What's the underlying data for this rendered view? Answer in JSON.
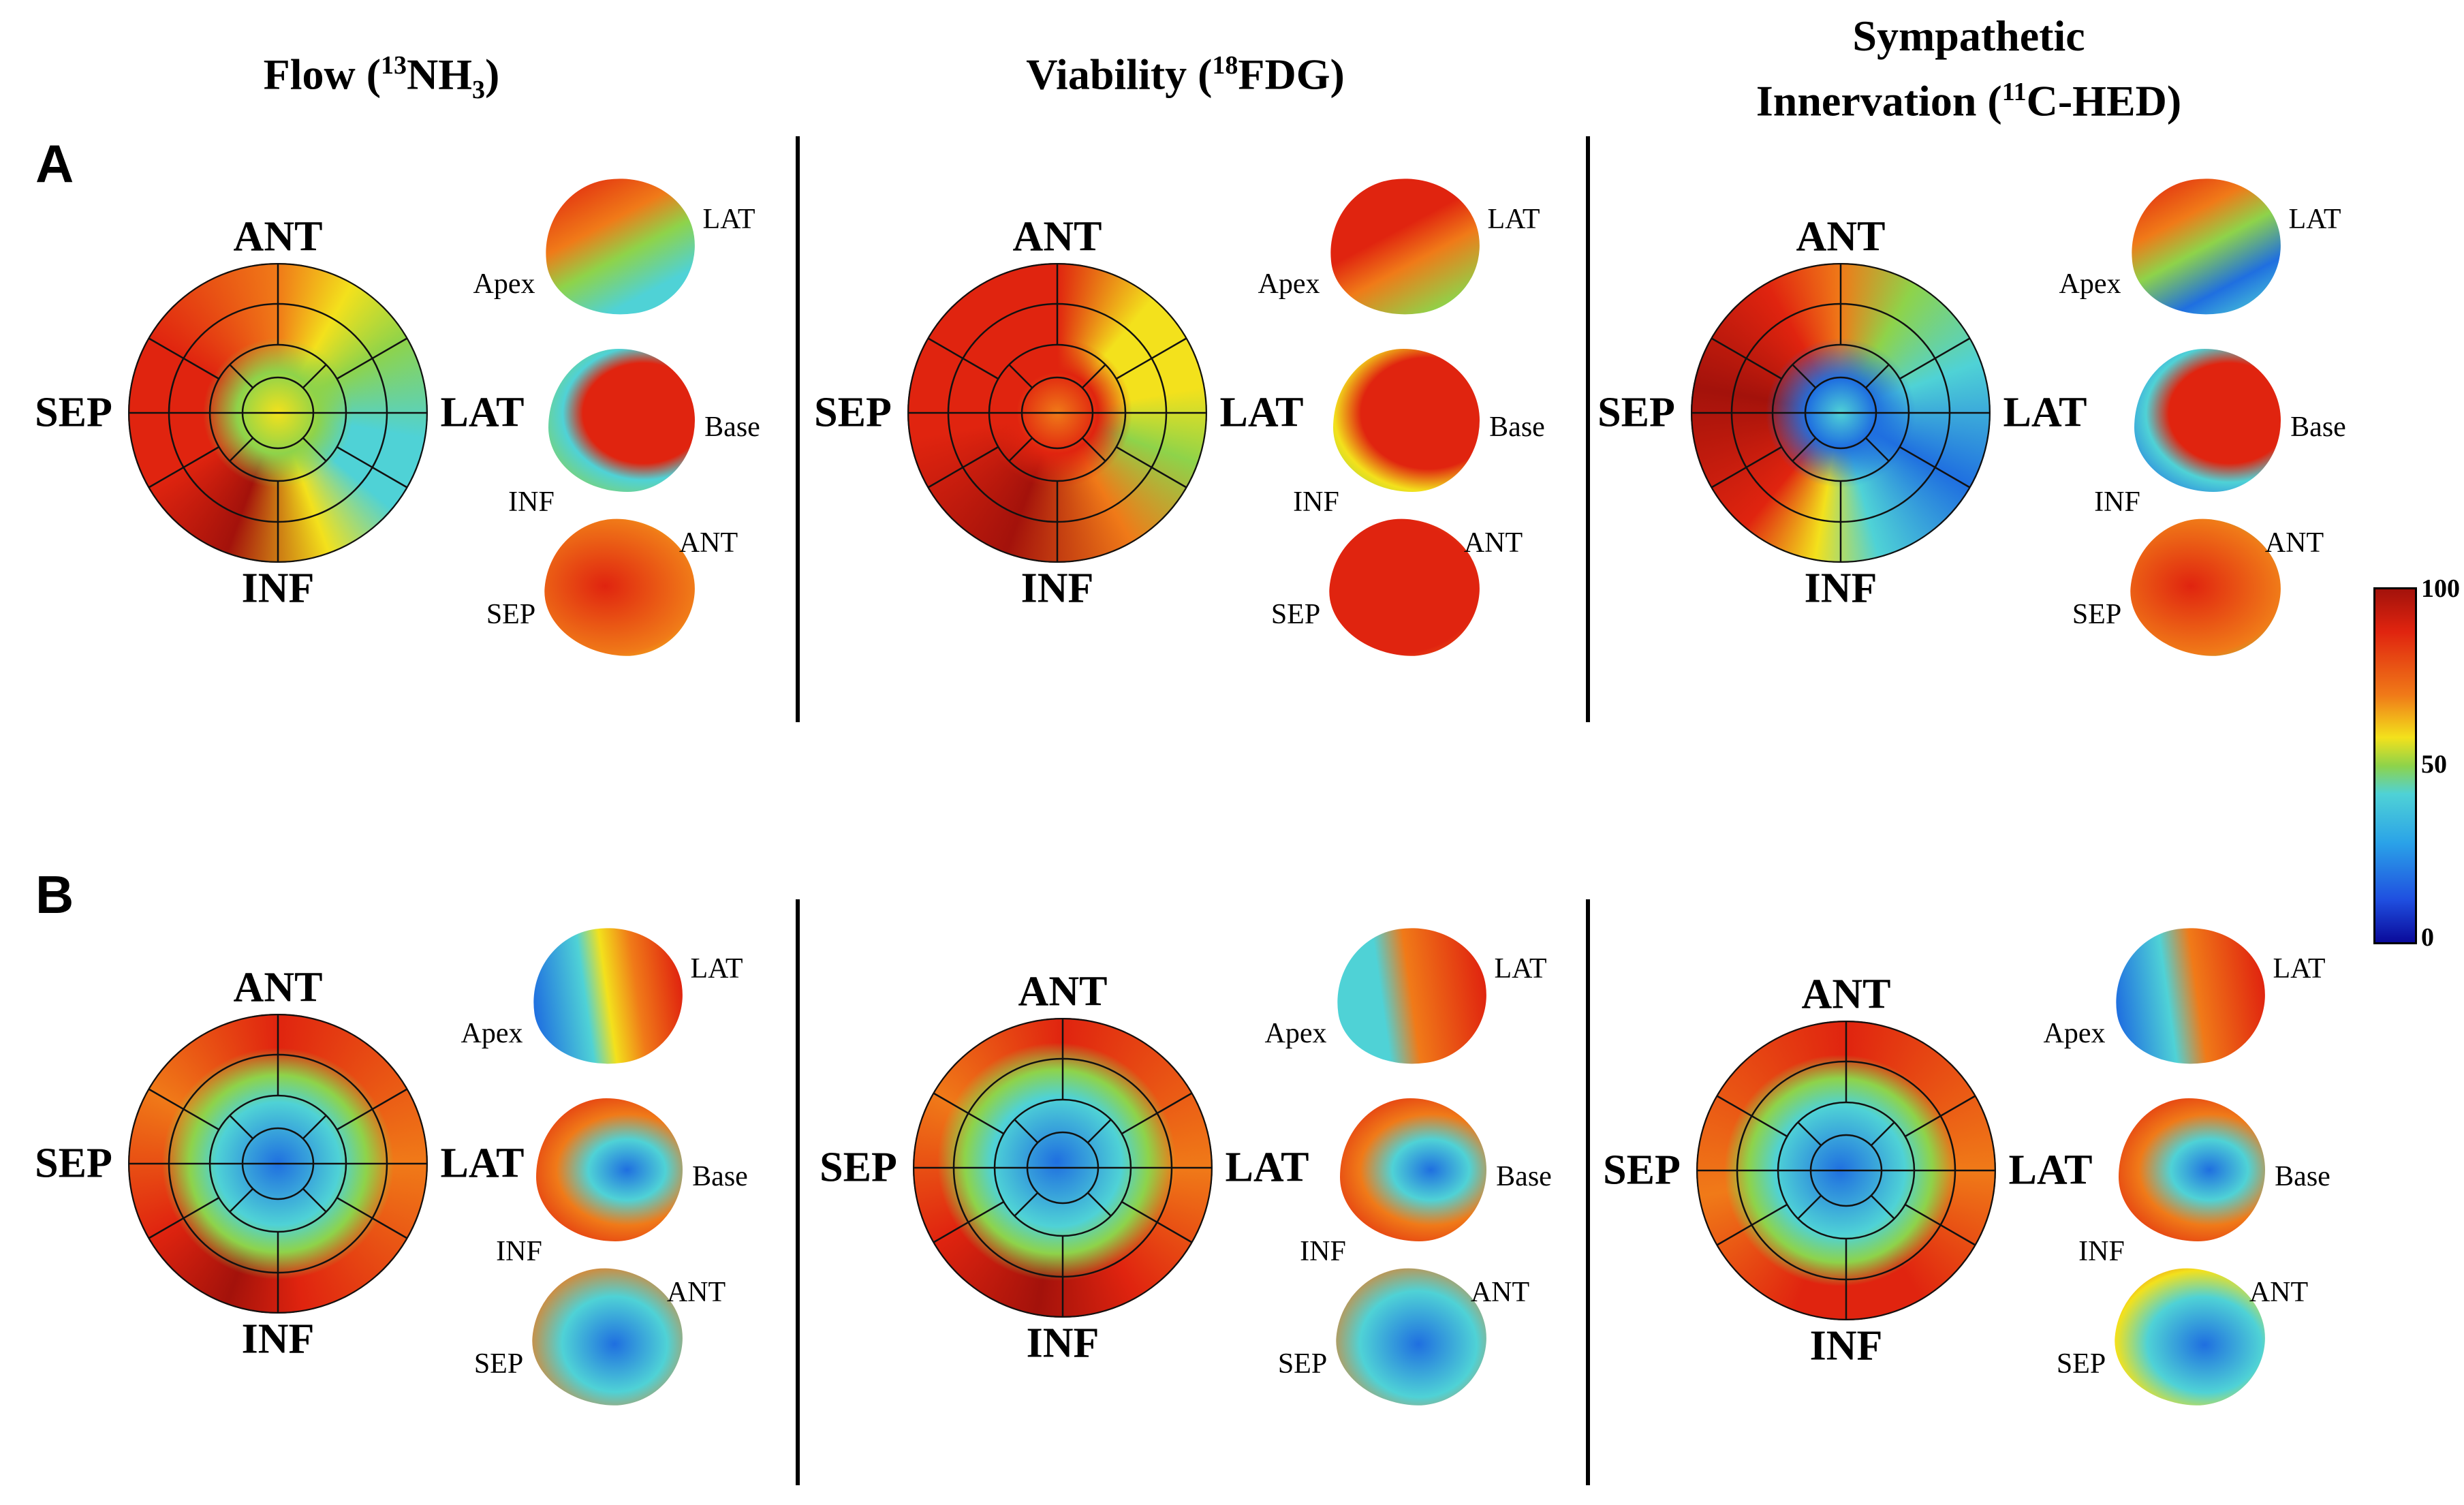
{
  "columns": {
    "flow": {
      "title_main": "Flow (",
      "title_sup": "13",
      "title_mid": "NH",
      "title_sub": "3",
      "title_end": ")"
    },
    "viability": {
      "title_main": "Viability (",
      "title_sup": "18",
      "title_end": "FDG)"
    },
    "innervation": {
      "title_line1": "Sympathetic",
      "title_main": "Innervation (",
      "title_sup": "11",
      "title_end": "C-HED)"
    }
  },
  "rows": {
    "a": "A",
    "b": "B"
  },
  "bullseye_labels": {
    "anterior": "ANT",
    "inferior": "INF",
    "septal": "SEP",
    "lateral": "LAT"
  },
  "view_labels": {
    "apex": "Apex",
    "lateral": "LAT",
    "base": "Base",
    "inferior": "INF",
    "anterior": "ANT",
    "septal": "SEP"
  },
  "colorbar": {
    "max": "100",
    "mid": "50",
    "min": "0"
  },
  "colors": {
    "red": "#e0240f",
    "orange": "#f07a18",
    "yellow": "#f3e11c",
    "green": "#8ed34a",
    "cyan": "#4fd2d6",
    "blue": "#1f6fe0",
    "darkred": "#a3120b"
  }
}
